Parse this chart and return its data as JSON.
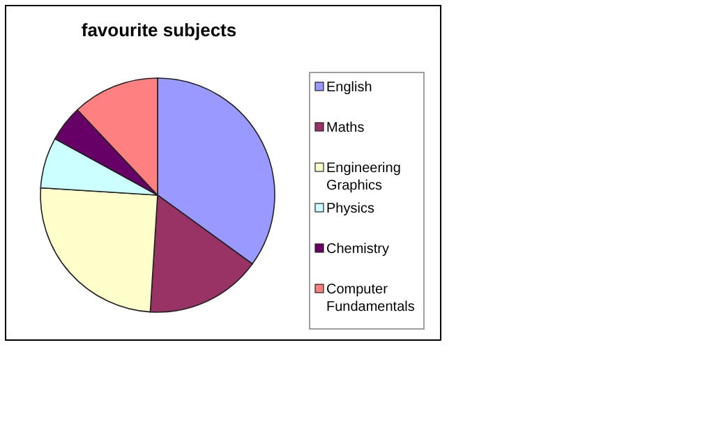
{
  "chart_data": {
    "type": "pie",
    "title": "favourite subjects",
    "categories": [
      "English",
      "Maths",
      "Engineering Graphics",
      "Physics",
      "Chemistry",
      "Computer Fundamentals"
    ],
    "values": [
      35,
      16,
      25,
      7,
      5,
      12
    ],
    "colors": [
      "#9999ff",
      "#993366",
      "#ffffcc",
      "#ccffff",
      "#660066",
      "#ff8080"
    ],
    "legend": "right"
  }
}
